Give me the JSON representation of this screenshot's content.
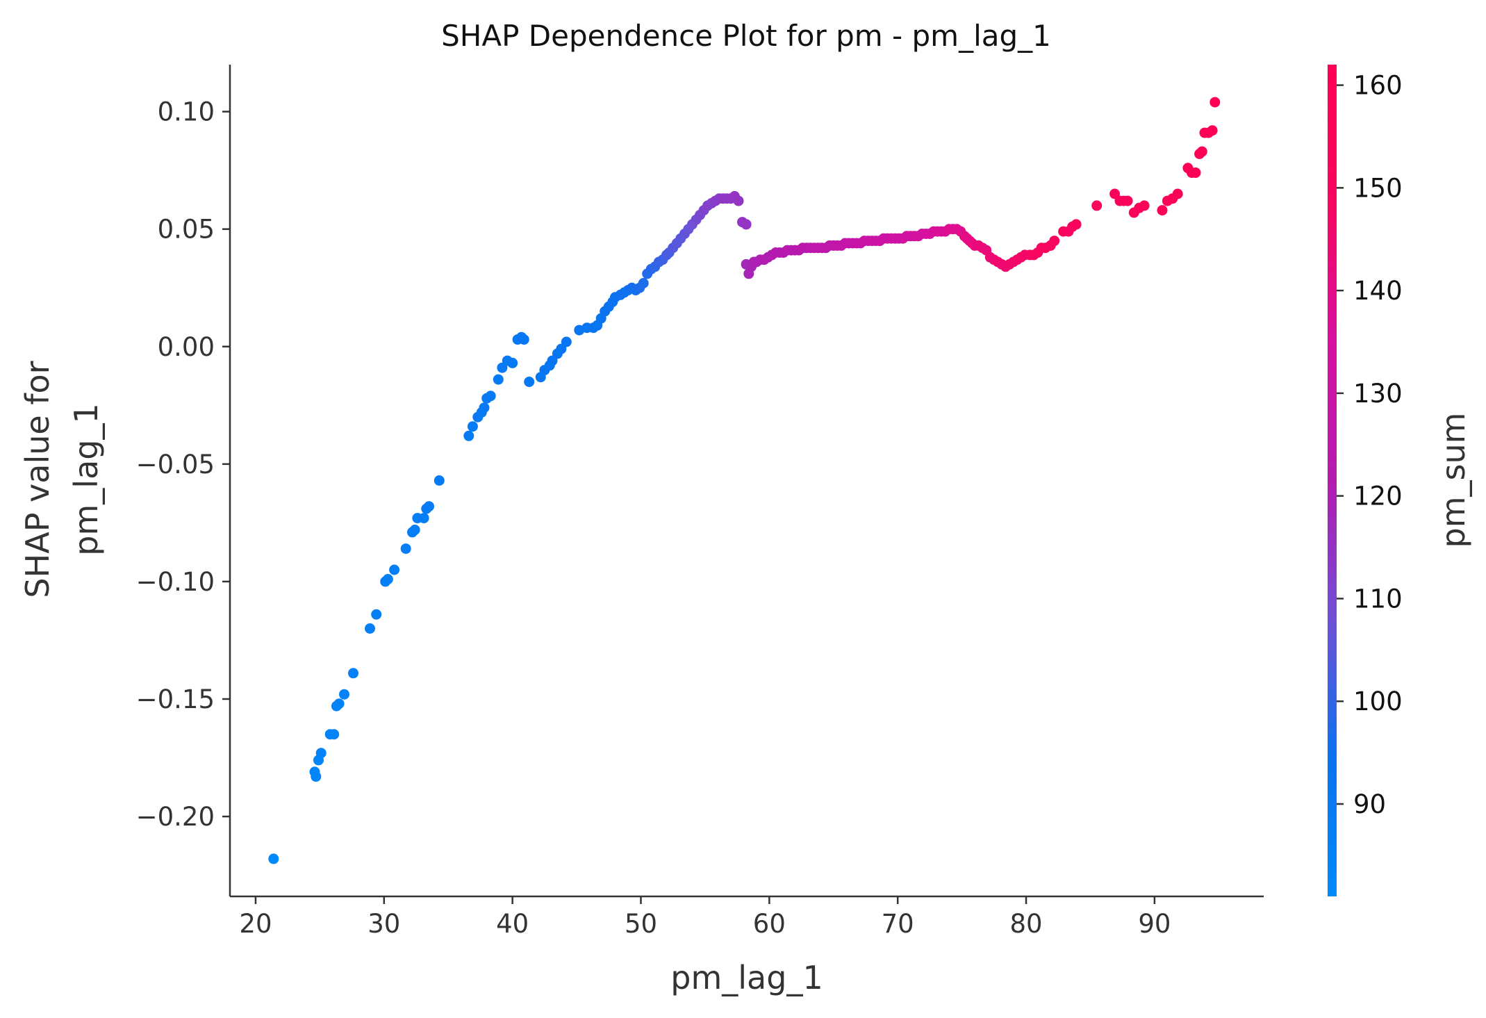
{
  "chart_data": {
    "type": "scatter",
    "title": "SHAP Dependence Plot for pm - pm_lag_1",
    "xlabel": "pm_lag_1",
    "ylabel_lines": [
      "SHAP value for",
      "pm_lag_1"
    ],
    "xlim": [
      18,
      98.5
    ],
    "ylim": [
      -0.234,
      0.12
    ],
    "xticks": [
      20,
      30,
      40,
      50,
      60,
      70,
      80,
      90
    ],
    "xtick_labels": [
      "20",
      "30",
      "40",
      "50",
      "60",
      "70",
      "80",
      "90"
    ],
    "yticks": [
      0.1,
      0.05,
      0.0,
      -0.05,
      -0.1,
      -0.15,
      -0.2
    ],
    "ytick_labels": [
      "0.10",
      "0.05",
      "0.00",
      "−0.05",
      "−0.10",
      "−0.15",
      "−0.20"
    ],
    "grid": false,
    "colorbar": {
      "label": "pm_sum",
      "range": [
        81,
        162
      ],
      "ticks": [
        90,
        100,
        110,
        120,
        130,
        140,
        150,
        160
      ],
      "tick_labels": [
        "90",
        "100",
        "110",
        "120",
        "130",
        "140",
        "150",
        "160"
      ],
      "colors": [
        "#008afb",
        "#0a72f0",
        "#6f50d6",
        "#b41ab0",
        "#d6109f",
        "#f8055f",
        "#ff0052"
      ]
    },
    "points": [
      [
        21.4,
        -0.218,
        82
      ],
      [
        24.6,
        -0.181,
        84
      ],
      [
        24.7,
        -0.183,
        84
      ],
      [
        24.9,
        -0.176,
        84
      ],
      [
        25.1,
        -0.173,
        85
      ],
      [
        25.8,
        -0.165,
        85
      ],
      [
        26.1,
        -0.165,
        85
      ],
      [
        26.3,
        -0.153,
        85
      ],
      [
        26.5,
        -0.152,
        85
      ],
      [
        26.9,
        -0.148,
        86
      ],
      [
        27.6,
        -0.139,
        86
      ],
      [
        28.9,
        -0.12,
        87
      ],
      [
        29.4,
        -0.114,
        87
      ],
      [
        30.1,
        -0.1,
        87
      ],
      [
        30.3,
        -0.099,
        87
      ],
      [
        30.8,
        -0.095,
        88
      ],
      [
        31.7,
        -0.086,
        88
      ],
      [
        32.2,
        -0.079,
        88
      ],
      [
        32.4,
        -0.078,
        88
      ],
      [
        32.6,
        -0.073,
        88
      ],
      [
        33.1,
        -0.073,
        88
      ],
      [
        33.3,
        -0.069,
        89
      ],
      [
        33.5,
        -0.068,
        89
      ],
      [
        34.3,
        -0.057,
        89
      ],
      [
        36.6,
        -0.038,
        89
      ],
      [
        36.9,
        -0.034,
        89
      ],
      [
        37.3,
        -0.03,
        90
      ],
      [
        37.6,
        -0.028,
        90
      ],
      [
        37.8,
        -0.026,
        90
      ],
      [
        38.0,
        -0.022,
        90
      ],
      [
        38.3,
        -0.021,
        90
      ],
      [
        38.9,
        -0.014,
        90
      ],
      [
        39.2,
        -0.009,
        90
      ],
      [
        39.6,
        -0.006,
        90
      ],
      [
        40.0,
        -0.007,
        91
      ],
      [
        40.4,
        0.003,
        91
      ],
      [
        40.7,
        0.004,
        91
      ],
      [
        40.9,
        0.003,
        91
      ],
      [
        41.3,
        -0.015,
        91
      ],
      [
        42.2,
        -0.013,
        91
      ],
      [
        42.5,
        -0.01,
        92
      ],
      [
        42.9,
        -0.008,
        92
      ],
      [
        43.1,
        -0.006,
        92
      ],
      [
        43.5,
        -0.003,
        92
      ],
      [
        43.8,
        -0.001,
        92
      ],
      [
        44.2,
        0.002,
        92
      ],
      [
        45.2,
        0.007,
        93
      ],
      [
        45.8,
        0.008,
        93
      ],
      [
        46.3,
        0.008,
        93
      ],
      [
        46.6,
        0.009,
        93
      ],
      [
        46.9,
        0.012,
        93
      ],
      [
        47.2,
        0.015,
        94
      ],
      [
        47.5,
        0.017,
        94
      ],
      [
        47.8,
        0.019,
        94
      ],
      [
        48.0,
        0.021,
        94
      ],
      [
        48.4,
        0.022,
        95
      ],
      [
        48.7,
        0.023,
        95
      ],
      [
        49.0,
        0.024,
        95
      ],
      [
        49.3,
        0.025,
        96
      ],
      [
        49.6,
        0.024,
        96
      ],
      [
        49.9,
        0.025,
        97
      ],
      [
        50.2,
        0.027,
        97
      ],
      [
        50.5,
        0.031,
        98
      ],
      [
        50.8,
        0.033,
        98
      ],
      [
        51.1,
        0.034,
        99
      ],
      [
        51.4,
        0.036,
        100
      ],
      [
        51.7,
        0.037,
        101
      ],
      [
        52.0,
        0.039,
        102
      ],
      [
        52.2,
        0.04,
        103
      ],
      [
        52.5,
        0.042,
        104
      ],
      [
        52.8,
        0.044,
        105
      ],
      [
        53.1,
        0.046,
        105
      ],
      [
        53.4,
        0.048,
        106
      ],
      [
        53.7,
        0.05,
        107
      ],
      [
        54.0,
        0.052,
        108
      ],
      [
        54.3,
        0.054,
        109
      ],
      [
        54.6,
        0.056,
        110
      ],
      [
        54.9,
        0.058,
        111
      ],
      [
        55.2,
        0.06,
        112
      ],
      [
        55.5,
        0.061,
        112
      ],
      [
        55.8,
        0.062,
        113
      ],
      [
        56.1,
        0.063,
        113
      ],
      [
        56.4,
        0.063,
        114
      ],
      [
        56.7,
        0.063,
        114
      ],
      [
        57.0,
        0.063,
        114
      ],
      [
        57.3,
        0.064,
        115
      ],
      [
        57.6,
        0.062,
        115
      ],
      [
        57.9,
        0.053,
        115
      ],
      [
        58.2,
        0.052,
        115
      ],
      [
        58.2,
        0.035,
        118
      ],
      [
        58.4,
        0.031,
        119
      ],
      [
        58.6,
        0.034,
        119
      ],
      [
        58.8,
        0.036,
        120
      ],
      [
        59.0,
        0.036,
        120
      ],
      [
        59.3,
        0.037,
        120
      ],
      [
        59.6,
        0.037,
        121
      ],
      [
        59.9,
        0.038,
        121
      ],
      [
        60.2,
        0.039,
        121
      ],
      [
        60.5,
        0.04,
        122
      ],
      [
        60.8,
        0.04,
        122
      ],
      [
        61.1,
        0.04,
        122
      ],
      [
        61.4,
        0.041,
        123
      ],
      [
        61.7,
        0.041,
        123
      ],
      [
        62.0,
        0.041,
        123
      ],
      [
        62.3,
        0.041,
        124
      ],
      [
        62.6,
        0.042,
        124
      ],
      [
        62.9,
        0.042,
        124
      ],
      [
        63.2,
        0.042,
        125
      ],
      [
        63.5,
        0.042,
        125
      ],
      [
        63.8,
        0.042,
        125
      ],
      [
        64.1,
        0.042,
        126
      ],
      [
        64.4,
        0.042,
        126
      ],
      [
        64.7,
        0.043,
        126
      ],
      [
        65.0,
        0.043,
        127
      ],
      [
        65.3,
        0.043,
        127
      ],
      [
        65.6,
        0.043,
        127
      ],
      [
        65.9,
        0.044,
        128
      ],
      [
        66.2,
        0.044,
        128
      ],
      [
        66.5,
        0.044,
        128
      ],
      [
        66.8,
        0.044,
        129
      ],
      [
        67.1,
        0.044,
        129
      ],
      [
        67.4,
        0.045,
        129
      ],
      [
        67.7,
        0.045,
        130
      ],
      [
        68.0,
        0.045,
        130
      ],
      [
        68.3,
        0.045,
        130
      ],
      [
        68.6,
        0.045,
        131
      ],
      [
        68.9,
        0.046,
        131
      ],
      [
        69.2,
        0.046,
        131
      ],
      [
        69.5,
        0.046,
        132
      ],
      [
        69.8,
        0.046,
        132
      ],
      [
        70.1,
        0.046,
        132
      ],
      [
        70.4,
        0.046,
        133
      ],
      [
        70.7,
        0.047,
        133
      ],
      [
        71.0,
        0.047,
        133
      ],
      [
        71.3,
        0.047,
        134
      ],
      [
        71.6,
        0.047,
        134
      ],
      [
        71.9,
        0.048,
        134
      ],
      [
        72.2,
        0.048,
        135
      ],
      [
        72.5,
        0.048,
        135
      ],
      [
        72.8,
        0.049,
        136
      ],
      [
        73.1,
        0.049,
        136
      ],
      [
        73.4,
        0.049,
        137
      ],
      [
        73.7,
        0.049,
        137
      ],
      [
        74.0,
        0.05,
        138
      ],
      [
        74.3,
        0.05,
        138
      ],
      [
        74.6,
        0.05,
        139
      ],
      [
        74.9,
        0.049,
        139
      ],
      [
        75.2,
        0.047,
        140
      ],
      [
        75.4,
        0.046,
        141
      ],
      [
        75.6,
        0.045,
        141
      ],
      [
        75.8,
        0.044,
        142
      ],
      [
        76.0,
        0.043,
        142
      ],
      [
        76.3,
        0.043,
        143
      ],
      [
        76.6,
        0.042,
        143
      ],
      [
        76.9,
        0.041,
        143
      ],
      [
        77.2,
        0.038,
        144
      ],
      [
        77.5,
        0.037,
        144
      ],
      [
        77.8,
        0.036,
        145
      ],
      [
        78.1,
        0.035,
        145
      ],
      [
        78.4,
        0.034,
        145
      ],
      [
        78.7,
        0.035,
        146
      ],
      [
        79.0,
        0.036,
        146
      ],
      [
        79.3,
        0.037,
        146
      ],
      [
        79.6,
        0.038,
        147
      ],
      [
        79.9,
        0.039,
        147
      ],
      [
        80.3,
        0.039,
        147
      ],
      [
        80.6,
        0.039,
        148
      ],
      [
        80.9,
        0.04,
        148
      ],
      [
        81.2,
        0.042,
        148
      ],
      [
        81.5,
        0.042,
        149
      ],
      [
        81.9,
        0.043,
        149
      ],
      [
        82.2,
        0.045,
        149
      ],
      [
        82.9,
        0.049,
        150
      ],
      [
        83.3,
        0.049,
        150
      ],
      [
        83.6,
        0.051,
        150
      ],
      [
        83.9,
        0.052,
        151
      ],
      [
        85.5,
        0.06,
        152
      ],
      [
        86.9,
        0.065,
        153
      ],
      [
        87.3,
        0.062,
        153
      ],
      [
        87.6,
        0.062,
        153
      ],
      [
        87.9,
        0.062,
        154
      ],
      [
        88.4,
        0.057,
        154
      ],
      [
        88.8,
        0.059,
        154
      ],
      [
        89.2,
        0.06,
        155
      ],
      [
        90.6,
        0.058,
        156
      ],
      [
        91.0,
        0.062,
        156
      ],
      [
        91.4,
        0.063,
        156
      ],
      [
        91.8,
        0.065,
        157
      ],
      [
        92.6,
        0.076,
        157
      ],
      [
        92.9,
        0.074,
        158
      ],
      [
        93.2,
        0.074,
        158
      ],
      [
        93.5,
        0.082,
        158
      ],
      [
        93.7,
        0.083,
        159
      ],
      [
        93.9,
        0.091,
        159
      ],
      [
        94.2,
        0.091,
        159
      ],
      [
        94.5,
        0.092,
        160
      ],
      [
        94.7,
        0.104,
        161
      ]
    ]
  }
}
